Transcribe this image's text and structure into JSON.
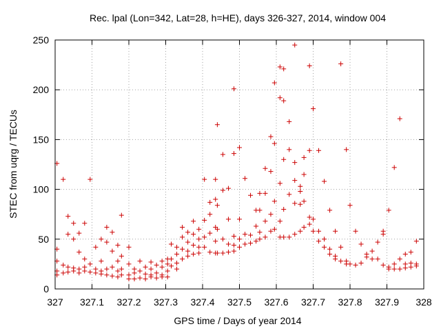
{
  "chart_data": {
    "type": "scatter",
    "title": "Rec. lpal (Lon=342, Lat=28, h=HE), days 326-327, 2014, window 004",
    "xlabel": "GPS time / Days of year 2014",
    "ylabel": "STEC from uqrg / TECUs",
    "xlim": [
      327,
      328
    ],
    "ylim": [
      0,
      250
    ],
    "xticks": [
      327,
      327.1,
      327.2,
      327.3,
      327.4,
      327.5,
      327.6,
      327.7,
      327.8,
      327.9,
      328
    ],
    "xtick_labels": [
      "327",
      "327.1",
      "327.2",
      "327.3",
      "327.4",
      "327.5",
      "327.6",
      "327.7",
      "327.8",
      "327.9",
      "328"
    ],
    "yticks": [
      0,
      50,
      100,
      150,
      200,
      250
    ],
    "ytick_labels": [
      "0",
      "50",
      "100",
      "150",
      "200",
      "250"
    ],
    "grid": true,
    "marker": "+",
    "color": "#cc0000",
    "points": [
      [
        327.005,
        126
      ],
      [
        327.005,
        40
      ],
      [
        327.005,
        28
      ],
      [
        327.005,
        18
      ],
      [
        327.005,
        14
      ],
      [
        327.022,
        110
      ],
      [
        327.022,
        24
      ],
      [
        327.022,
        16
      ],
      [
        327.035,
        73
      ],
      [
        327.035,
        55
      ],
      [
        327.035,
        22
      ],
      [
        327.035,
        17
      ],
      [
        327.05,
        66
      ],
      [
        327.05,
        50
      ],
      [
        327.05,
        21
      ],
      [
        327.05,
        18
      ],
      [
        327.065,
        56
      ],
      [
        327.065,
        37
      ],
      [
        327.065,
        20
      ],
      [
        327.065,
        16
      ],
      [
        327.08,
        66
      ],
      [
        327.08,
        30
      ],
      [
        327.08,
        22
      ],
      [
        327.08,
        18
      ],
      [
        327.095,
        110
      ],
      [
        327.095,
        25
      ],
      [
        327.095,
        17
      ],
      [
        327.11,
        42
      ],
      [
        327.11,
        20
      ],
      [
        327.11,
        16
      ],
      [
        327.125,
        50
      ],
      [
        327.125,
        28
      ],
      [
        327.125,
        18
      ],
      [
        327.125,
        15
      ],
      [
        327.14,
        62
      ],
      [
        327.14,
        47
      ],
      [
        327.14,
        20
      ],
      [
        327.14,
        14
      ],
      [
        327.155,
        57
      ],
      [
        327.155,
        38
      ],
      [
        327.155,
        22
      ],
      [
        327.155,
        13
      ],
      [
        327.17,
        44
      ],
      [
        327.17,
        28
      ],
      [
        327.17,
        18
      ],
      [
        327.17,
        12
      ],
      [
        327.18,
        74
      ],
      [
        327.18,
        33
      ],
      [
        327.18,
        20
      ],
      [
        327.18,
        14
      ],
      [
        327.2,
        42
      ],
      [
        327.2,
        25
      ],
      [
        327.2,
        14
      ],
      [
        327.2,
        10
      ],
      [
        327.215,
        20
      ],
      [
        327.215,
        16
      ],
      [
        327.215,
        10
      ],
      [
        327.23,
        28
      ],
      [
        327.23,
        18
      ],
      [
        327.23,
        11
      ],
      [
        327.245,
        22
      ],
      [
        327.245,
        15
      ],
      [
        327.245,
        10
      ],
      [
        327.26,
        27
      ],
      [
        327.26,
        20
      ],
      [
        327.26,
        14
      ],
      [
        327.26,
        12
      ],
      [
        327.275,
        24
      ],
      [
        327.275,
        16
      ],
      [
        327.275,
        11
      ],
      [
        327.29,
        28
      ],
      [
        327.29,
        22
      ],
      [
        327.29,
        14
      ],
      [
        327.29,
        12
      ],
      [
        327.305,
        30
      ],
      [
        327.305,
        25
      ],
      [
        327.305,
        18
      ],
      [
        327.305,
        12
      ],
      [
        327.315,
        45
      ],
      [
        327.315,
        30
      ],
      [
        327.315,
        23
      ],
      [
        327.33,
        42
      ],
      [
        327.33,
        35
      ],
      [
        327.33,
        26
      ],
      [
        327.33,
        20
      ],
      [
        327.345,
        62
      ],
      [
        327.345,
        52
      ],
      [
        327.345,
        40
      ],
      [
        327.345,
        30
      ],
      [
        327.36,
        57
      ],
      [
        327.36,
        47
      ],
      [
        327.36,
        38
      ],
      [
        327.36,
        33
      ],
      [
        327.375,
        68
      ],
      [
        327.375,
        55
      ],
      [
        327.375,
        44
      ],
      [
        327.375,
        35
      ],
      [
        327.39,
        60
      ],
      [
        327.39,
        50
      ],
      [
        327.39,
        42
      ],
      [
        327.39,
        36
      ],
      [
        327.405,
        110
      ],
      [
        327.405,
        69
      ],
      [
        327.405,
        52
      ],
      [
        327.405,
        42
      ],
      [
        327.42,
        87
      ],
      [
        327.42,
        75
      ],
      [
        327.42,
        56
      ],
      [
        327.42,
        37
      ],
      [
        327.435,
        110
      ],
      [
        327.435,
        90
      ],
      [
        327.435,
        62
      ],
      [
        327.435,
        48
      ],
      [
        327.435,
        36
      ],
      [
        327.44,
        165
      ],
      [
        327.44,
        84
      ],
      [
        327.44,
        60
      ],
      [
        327.44,
        36
      ],
      [
        327.455,
        135
      ],
      [
        327.455,
        99
      ],
      [
        327.455,
        50
      ],
      [
        327.455,
        36
      ],
      [
        327.47,
        101
      ],
      [
        327.47,
        70
      ],
      [
        327.47,
        45
      ],
      [
        327.47,
        37
      ],
      [
        327.485,
        201
      ],
      [
        327.485,
        136
      ],
      [
        327.485,
        53
      ],
      [
        327.485,
        44
      ],
      [
        327.485,
        38
      ],
      [
        327.5,
        142
      ],
      [
        327.5,
        70
      ],
      [
        327.5,
        50
      ],
      [
        327.5,
        42
      ],
      [
        327.515,
        111
      ],
      [
        327.515,
        55
      ],
      [
        327.515,
        45
      ],
      [
        327.53,
        94
      ],
      [
        327.53,
        54
      ],
      [
        327.53,
        46
      ],
      [
        327.545,
        79
      ],
      [
        327.545,
        63
      ],
      [
        327.545,
        48
      ],
      [
        327.555,
        96
      ],
      [
        327.555,
        79
      ],
      [
        327.555,
        57
      ],
      [
        327.555,
        50
      ],
      [
        327.57,
        121
      ],
      [
        327.57,
        96
      ],
      [
        327.57,
        68
      ],
      [
        327.57,
        52
      ],
      [
        327.585,
        153
      ],
      [
        327.585,
        118
      ],
      [
        327.585,
        75
      ],
      [
        327.585,
        58
      ],
      [
        327.595,
        207
      ],
      [
        327.595,
        146
      ],
      [
        327.595,
        88
      ],
      [
        327.595,
        60
      ],
      [
        327.61,
        223
      ],
      [
        327.61,
        192
      ],
      [
        327.61,
        106
      ],
      [
        327.61,
        68
      ],
      [
        327.61,
        52
      ],
      [
        327.62,
        221
      ],
      [
        327.62,
        189
      ],
      [
        327.62,
        130
      ],
      [
        327.62,
        80
      ],
      [
        327.62,
        52
      ],
      [
        327.635,
        168
      ],
      [
        327.635,
        140
      ],
      [
        327.635,
        95
      ],
      [
        327.635,
        52
      ],
      [
        327.65,
        245
      ],
      [
        327.65,
        127
      ],
      [
        327.65,
        109
      ],
      [
        327.65,
        86
      ],
      [
        327.65,
        55
      ],
      [
        327.665,
        103
      ],
      [
        327.665,
        98
      ],
      [
        327.665,
        85
      ],
      [
        327.665,
        58
      ],
      [
        327.675,
        132
      ],
      [
        327.675,
        115
      ],
      [
        327.675,
        88
      ],
      [
        327.675,
        62
      ],
      [
        327.69,
        224
      ],
      [
        327.69,
        139
      ],
      [
        327.69,
        72
      ],
      [
        327.69,
        65
      ],
      [
        327.7,
        181
      ],
      [
        327.7,
        70
      ],
      [
        327.7,
        58
      ],
      [
        327.715,
        139
      ],
      [
        327.715,
        58
      ],
      [
        327.715,
        48
      ],
      [
        327.73,
        108
      ],
      [
        327.73,
        50
      ],
      [
        327.73,
        42
      ],
      [
        327.745,
        79
      ],
      [
        327.745,
        40
      ],
      [
        327.745,
        35
      ],
      [
        327.76,
        58
      ],
      [
        327.76,
        33
      ],
      [
        327.76,
        30
      ],
      [
        327.775,
        226
      ],
      [
        327.775,
        42
      ],
      [
        327.775,
        28
      ],
      [
        327.79,
        140
      ],
      [
        327.79,
        28
      ],
      [
        327.79,
        25
      ],
      [
        327.8,
        84
      ],
      [
        327.8,
        25
      ],
      [
        327.815,
        58
      ],
      [
        327.815,
        24
      ],
      [
        327.83,
        45
      ],
      [
        327.83,
        26
      ],
      [
        327.845,
        35
      ],
      [
        327.845,
        32
      ],
      [
        327.86,
        38
      ],
      [
        327.86,
        30
      ],
      [
        327.875,
        47
      ],
      [
        327.875,
        30
      ],
      [
        327.89,
        58
      ],
      [
        327.89,
        55
      ],
      [
        327.89,
        24
      ],
      [
        327.905,
        79
      ],
      [
        327.905,
        22
      ],
      [
        327.905,
        20
      ],
      [
        327.92,
        122
      ],
      [
        327.92,
        25
      ],
      [
        327.92,
        20
      ],
      [
        327.935,
        171
      ],
      [
        327.935,
        30
      ],
      [
        327.935,
        20
      ],
      [
        327.95,
        35
      ],
      [
        327.95,
        25
      ],
      [
        327.95,
        21
      ],
      [
        327.965,
        37
      ],
      [
        327.965,
        26
      ],
      [
        327.965,
        22
      ],
      [
        327.98,
        48
      ],
      [
        327.98,
        25
      ],
      [
        327.98,
        23
      ]
    ]
  }
}
